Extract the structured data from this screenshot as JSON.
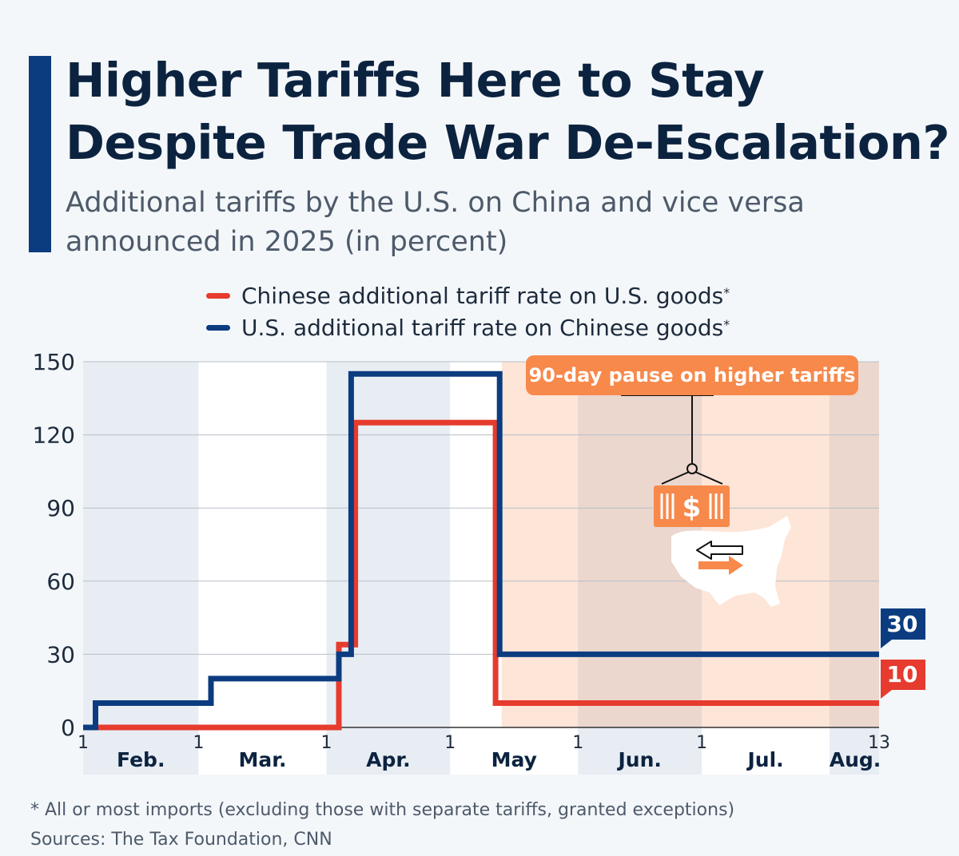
{
  "title": "Higher Tariffs Here to Stay Despite Trade War De-Escalation?",
  "subtitle": "Additional tariffs by the U.S. on China and vice versa announced in 2025 (in percent)",
  "legend": [
    {
      "label": "Chinese additional tariff rate on U.S. goods",
      "marker": "*",
      "color": "#e63b2e"
    },
    {
      "label": "U.S. additional tariff rate on Chinese goods",
      "marker": "*",
      "color": "#0c3c80"
    }
  ],
  "annotation": {
    "label": "90-day pause on higher tariffs",
    "icon": "shipping-container-dollar-icon",
    "color": "#f7894b"
  },
  "end_labels": {
    "us": "30",
    "china": "10"
  },
  "footnotes": [
    "* All or most imports (excluding those with separate tariffs, granted exceptions)",
    "Sources: The Tax Foundation, CNN"
  ],
  "chart_data": {
    "type": "line",
    "step": true,
    "x_unit": "day of year 2025",
    "ylim": [
      0,
      150
    ],
    "yticks": [
      0,
      30,
      60,
      90,
      120,
      150
    ],
    "xlim": [
      32,
      225
    ],
    "grid": true,
    "x_day_ticks": [
      {
        "day": 32,
        "label": "1"
      },
      {
        "day": 60,
        "label": "1"
      },
      {
        "day": 91,
        "label": "1"
      },
      {
        "day": 121,
        "label": "1"
      },
      {
        "day": 152,
        "label": "1"
      },
      {
        "day": 182,
        "label": "1"
      },
      {
        "day": 225,
        "label": "13"
      }
    ],
    "months": [
      {
        "label": "Feb.",
        "start": 32,
        "end": 60
      },
      {
        "label": "Mar.",
        "start": 60,
        "end": 91
      },
      {
        "label": "Apr.",
        "start": 91,
        "end": 121
      },
      {
        "label": "May",
        "start": 121,
        "end": 152
      },
      {
        "label": "Jun.",
        "start": 152,
        "end": 182
      },
      {
        "label": "Jul.",
        "start": 182,
        "end": 213
      },
      {
        "label": "Aug.",
        "start": 213,
        "end": 225
      }
    ],
    "pause_period": {
      "start": 133.5,
      "end": 225
    },
    "series": [
      {
        "name": "Chinese additional tariff rate on U.S. goods",
        "color": "#e63b2e",
        "points": [
          [
            32,
            0
          ],
          [
            94,
            0
          ],
          [
            94,
            34
          ],
          [
            98,
            34
          ],
          [
            98,
            125
          ],
          [
            132,
            125
          ],
          [
            132,
            10
          ],
          [
            225,
            10
          ]
        ]
      },
      {
        "name": "U.S. additional tariff rate on Chinese goods",
        "color": "#0c3c80",
        "points": [
          [
            32,
            0
          ],
          [
            35,
            0
          ],
          [
            35,
            10
          ],
          [
            63,
            10
          ],
          [
            63,
            20
          ],
          [
            94,
            20
          ],
          [
            94,
            30
          ],
          [
            97,
            30
          ],
          [
            97,
            145
          ],
          [
            133,
            145
          ],
          [
            133,
            30
          ],
          [
            225,
            30
          ]
        ]
      }
    ]
  }
}
